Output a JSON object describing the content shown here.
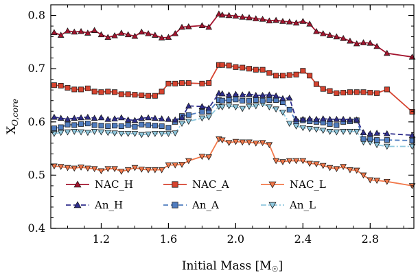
{
  "chart_data": {
    "type": "line",
    "xlabel": "Initial Mass [M",
    "xlabel_sym": "☉",
    "xlabel_close": "]",
    "ylabel_main": "X",
    "ylabel_sub": "O,core",
    "xlim": [
      0.9,
      3.06
    ],
    "ylim": [
      0.4,
      0.82
    ],
    "xticks": [
      1.2,
      1.6,
      2.0,
      2.4,
      2.8
    ],
    "yticks": [
      0.4,
      0.5,
      0.6,
      0.7,
      0.8
    ],
    "xtick_labels": [
      "1.2",
      "1.6",
      "2.0",
      "2.4",
      "2.8"
    ],
    "ytick_labels": [
      "0.4",
      "0.5",
      "0.6",
      "0.7",
      "0.8"
    ],
    "grid": false,
    "legend_position": "lower-left",
    "series": [
      {
        "name": "NAC_H",
        "color": "#a3142e",
        "marker": "triangle-up",
        "linestyle": "solid",
        "x": [
          0.92,
          0.96,
          1.0,
          1.04,
          1.08,
          1.12,
          1.16,
          1.2,
          1.24,
          1.28,
          1.32,
          1.36,
          1.4,
          1.44,
          1.48,
          1.52,
          1.56,
          1.6,
          1.64,
          1.68,
          1.72,
          1.8,
          1.84,
          1.9,
          1.92,
          1.96,
          2.0,
          2.04,
          2.08,
          2.12,
          2.16,
          2.2,
          2.24,
          2.28,
          2.32,
          2.36,
          2.4,
          2.44,
          2.48,
          2.52,
          2.56,
          2.6,
          2.64,
          2.68,
          2.72,
          2.76,
          2.8,
          2.84,
          2.9,
          3.05
        ],
        "y": [
          0.768,
          0.763,
          0.771,
          0.769,
          0.77,
          0.767,
          0.772,
          0.764,
          0.759,
          0.762,
          0.767,
          0.764,
          0.761,
          0.769,
          0.766,
          0.763,
          0.758,
          0.759,
          0.766,
          0.778,
          0.779,
          0.781,
          0.778,
          0.803,
          0.801,
          0.8,
          0.799,
          0.797,
          0.796,
          0.794,
          0.793,
          0.79,
          0.791,
          0.789,
          0.788,
          0.786,
          0.789,
          0.784,
          0.77,
          0.766,
          0.763,
          0.76,
          0.757,
          0.752,
          0.747,
          0.749,
          0.748,
          0.742,
          0.729,
          0.722
        ]
      },
      {
        "name": "NAC_A",
        "color": "#d6432f",
        "marker": "square",
        "linestyle": "solid",
        "x": [
          0.92,
          0.96,
          1.0,
          1.04,
          1.08,
          1.12,
          1.16,
          1.2,
          1.24,
          1.28,
          1.32,
          1.36,
          1.4,
          1.44,
          1.48,
          1.52,
          1.56,
          1.6,
          1.64,
          1.68,
          1.72,
          1.8,
          1.84,
          1.9,
          1.92,
          1.96,
          2.0,
          2.04,
          2.08,
          2.12,
          2.16,
          2.2,
          2.24,
          2.28,
          2.32,
          2.36,
          2.4,
          2.44,
          2.48,
          2.52,
          2.56,
          2.6,
          2.64,
          2.68,
          2.72,
          2.76,
          2.8,
          2.84,
          2.9,
          3.05
        ],
        "y": [
          0.669,
          0.668,
          0.664,
          0.661,
          0.661,
          0.663,
          0.657,
          0.656,
          0.657,
          0.656,
          0.652,
          0.652,
          0.651,
          0.65,
          0.649,
          0.649,
          0.657,
          0.672,
          0.672,
          0.673,
          0.673,
          0.672,
          0.673,
          0.707,
          0.707,
          0.706,
          0.703,
          0.702,
          0.7,
          0.698,
          0.698,
          0.692,
          0.687,
          0.687,
          0.688,
          0.689,
          0.696,
          0.687,
          0.671,
          0.662,
          0.658,
          0.654,
          0.655,
          0.656,
          0.656,
          0.656,
          0.655,
          0.654,
          0.661,
          0.619
        ]
      },
      {
        "name": "NAC_L",
        "color": "#f2784a",
        "marker": "triangle-down",
        "linestyle": "solid",
        "x": [
          0.92,
          0.96,
          1.0,
          1.04,
          1.08,
          1.12,
          1.16,
          1.2,
          1.24,
          1.28,
          1.32,
          1.36,
          1.4,
          1.44,
          1.48,
          1.52,
          1.56,
          1.6,
          1.64,
          1.68,
          1.72,
          1.8,
          1.84,
          1.9,
          1.92,
          1.96,
          2.0,
          2.04,
          2.08,
          2.12,
          2.16,
          2.2,
          2.24,
          2.28,
          2.32,
          2.36,
          2.4,
          2.44,
          2.48,
          2.52,
          2.56,
          2.6,
          2.64,
          2.68,
          2.72,
          2.76,
          2.8,
          2.84,
          2.9,
          3.05
        ],
        "y": [
          0.517,
          0.516,
          0.514,
          0.513,
          0.515,
          0.513,
          0.512,
          0.508,
          0.512,
          0.512,
          0.507,
          0.51,
          0.514,
          0.511,
          0.51,
          0.51,
          0.51,
          0.519,
          0.519,
          0.52,
          0.527,
          0.535,
          0.534,
          0.568,
          0.566,
          0.561,
          0.563,
          0.562,
          0.562,
          0.56,
          0.561,
          0.557,
          0.527,
          0.525,
          0.527,
          0.527,
          0.527,
          0.522,
          0.521,
          0.518,
          0.514,
          0.512,
          0.516,
          0.51,
          0.509,
          0.5,
          0.491,
          0.49,
          0.488,
          0.48
        ]
      },
      {
        "name": "An_H",
        "color": "#2e2d8c",
        "marker": "triangle-up",
        "linestyle": "dashed",
        "x": [
          0.92,
          0.96,
          1.0,
          1.04,
          1.08,
          1.12,
          1.16,
          1.2,
          1.24,
          1.28,
          1.32,
          1.36,
          1.4,
          1.44,
          1.48,
          1.52,
          1.56,
          1.6,
          1.64,
          1.68,
          1.72,
          1.8,
          1.84,
          1.9,
          1.92,
          1.96,
          2.0,
          2.04,
          2.08,
          2.12,
          2.16,
          2.2,
          2.24,
          2.28,
          2.32,
          2.36,
          2.4,
          2.44,
          2.48,
          2.52,
          2.56,
          2.6,
          2.64,
          2.68,
          2.72,
          2.76,
          2.8,
          2.84,
          2.9,
          3.05
        ],
        "y": [
          0.609,
          0.607,
          0.605,
          0.607,
          0.608,
          0.609,
          0.607,
          0.608,
          0.605,
          0.606,
          0.608,
          0.604,
          0.603,
          0.607,
          0.608,
          0.607,
          0.606,
          0.605,
          0.604,
          0.608,
          0.63,
          0.629,
          0.626,
          0.654,
          0.653,
          0.651,
          0.652,
          0.651,
          0.652,
          0.65,
          0.65,
          0.651,
          0.649,
          0.644,
          0.645,
          0.605,
          0.605,
          0.606,
          0.605,
          0.606,
          0.605,
          0.605,
          0.605,
          0.604,
          0.604,
          0.58,
          0.578,
          0.579,
          0.578,
          0.575
        ]
      },
      {
        "name": "An_A",
        "color": "#4f7cbf",
        "marker": "square",
        "linestyle": "dashed",
        "x": [
          0.92,
          0.96,
          1.0,
          1.04,
          1.08,
          1.12,
          1.16,
          1.2,
          1.24,
          1.28,
          1.32,
          1.36,
          1.4,
          1.44,
          1.48,
          1.52,
          1.56,
          1.6,
          1.64,
          1.68,
          1.72,
          1.8,
          1.84,
          1.9,
          1.92,
          1.96,
          2.0,
          2.04,
          2.08,
          2.12,
          2.16,
          2.2,
          2.24,
          2.28,
          2.32,
          2.36,
          2.4,
          2.44,
          2.48,
          2.52,
          2.56,
          2.6,
          2.64,
          2.68,
          2.72,
          2.76,
          2.8,
          2.84,
          2.9,
          3.05
        ],
        "y": [
          0.588,
          0.59,
          0.595,
          0.594,
          0.596,
          0.597,
          0.594,
          0.593,
          0.592,
          0.593,
          0.592,
          0.594,
          0.591,
          0.595,
          0.594,
          0.593,
          0.592,
          0.589,
          0.6,
          0.611,
          0.613,
          0.619,
          0.62,
          0.641,
          0.64,
          0.641,
          0.642,
          0.64,
          0.64,
          0.641,
          0.64,
          0.641,
          0.641,
          0.637,
          0.623,
          0.601,
          0.603,
          0.601,
          0.6,
          0.599,
          0.596,
          0.594,
          0.6,
          0.601,
          0.603,
          0.568,
          0.568,
          0.566,
          0.566,
          0.565
        ]
      },
      {
        "name": "An_L",
        "color": "#8fc8de",
        "marker": "triangle-down",
        "linestyle": "dashdot",
        "x": [
          0.92,
          0.96,
          1.0,
          1.04,
          1.08,
          1.12,
          1.16,
          1.2,
          1.24,
          1.28,
          1.32,
          1.36,
          1.4,
          1.44,
          1.48,
          1.52,
          1.56,
          1.6,
          1.64,
          1.68,
          1.72,
          1.8,
          1.84,
          1.9,
          1.92,
          1.96,
          2.0,
          2.04,
          2.08,
          2.12,
          2.16,
          2.2,
          2.24,
          2.28,
          2.32,
          2.36,
          2.4,
          2.44,
          2.48,
          2.52,
          2.56,
          2.6,
          2.64,
          2.68,
          2.72,
          2.76,
          2.8,
          2.84,
          2.9,
          3.05
        ],
        "y": [
          0.578,
          0.58,
          0.581,
          0.582,
          0.581,
          0.58,
          0.582,
          0.581,
          0.58,
          0.579,
          0.578,
          0.578,
          0.578,
          0.576,
          0.577,
          0.578,
          0.578,
          0.578,
          0.579,
          0.597,
          0.601,
          0.607,
          0.609,
          0.629,
          0.628,
          0.63,
          0.628,
          0.625,
          0.629,
          0.63,
          0.634,
          0.628,
          0.624,
          0.618,
          0.597,
          0.592,
          0.589,
          0.587,
          0.586,
          0.584,
          0.582,
          0.581,
          0.582,
          0.582,
          0.582,
          0.562,
          0.562,
          0.557,
          0.554,
          0.554
        ]
      }
    ]
  }
}
